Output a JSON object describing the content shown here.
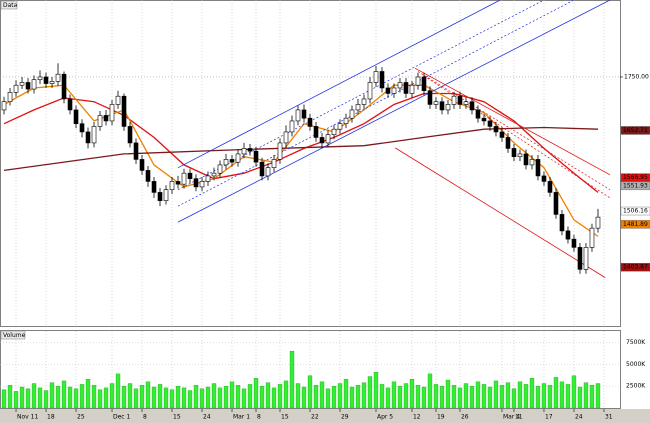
{
  "chart_data": {
    "type": "candlestick",
    "title": "Data",
    "xlim": [
      -0.67,
      102.67
    ],
    "ylim": [
      1297,
      1890
    ],
    "xticks": [
      {
        "value": 2,
        "label": "Nov 11"
      },
      {
        "value": 7,
        "label": "18"
      },
      {
        "value": 12,
        "label": "25"
      },
      {
        "value": 18,
        "label": "Dec 1"
      },
      {
        "value": 23,
        "label": "8"
      },
      {
        "value": 28,
        "label": "15"
      },
      {
        "value": 33,
        "label": "24"
      },
      {
        "value": 38,
        "label": "Mar 1"
      },
      {
        "value": 42,
        "label": "8"
      },
      {
        "value": 46,
        "label": "15"
      },
      {
        "value": 51,
        "label": "22"
      },
      {
        "value": 56,
        "label": "29"
      },
      {
        "value": 62,
        "label": "Apr 5"
      },
      {
        "value": 68,
        "label": "12"
      },
      {
        "value": 72,
        "label": "19"
      },
      {
        "value": 76,
        "label": "26"
      },
      {
        "value": 83,
        "label": "Mar 4"
      },
      {
        "value": 85,
        "label": "11"
      },
      {
        "value": 90,
        "label": "17"
      },
      {
        "value": 95,
        "label": "24"
      },
      {
        "value": 100,
        "label": "31"
      }
    ],
    "yticks": [
      {
        "value": 1750,
        "label": "1750.00"
      }
    ],
    "grid": true,
    "open": [
      1690,
      1705,
      1722,
      1735,
      1740,
      1728,
      1745,
      1750,
      1738,
      1742,
      1755,
      1710,
      1690,
      1665,
      1650,
      1630,
      1660,
      1680,
      1670,
      1700,
      1715,
      1660,
      1630,
      1600,
      1580,
      1560,
      1540,
      1525,
      1545,
      1560,
      1555,
      1575,
      1565,
      1550,
      1560,
      1570,
      1575,
      1590,
      1600,
      1595,
      1610,
      1620,
      1615,
      1595,
      1570,
      1585,
      1600,
      1630,
      1650,
      1670,
      1690,
      1675,
      1660,
      1640,
      1630,
      1645,
      1655,
      1665,
      1675,
      1690,
      1700,
      1710,
      1740,
      1760,
      1730,
      1720,
      1730,
      1740,
      1720,
      1735,
      1750,
      1725,
      1700,
      1705,
      1690,
      1700,
      1715,
      1700,
      1705,
      1690,
      1675,
      1670,
      1660,
      1650,
      1640,
      1620,
      1605,
      1610,
      1590,
      1600,
      1570,
      1560,
      1540,
      1500,
      1470,
      1455,
      1440,
      1400,
      1440,
      1475
    ],
    "high": [
      1714,
      1730,
      1744,
      1750,
      1748,
      1753,
      1762,
      1758,
      1750,
      1775,
      1760,
      1718,
      1698,
      1673,
      1658,
      1668,
      1688,
      1690,
      1708,
      1725,
      1720,
      1668,
      1638,
      1608,
      1588,
      1568,
      1548,
      1553,
      1568,
      1570,
      1583,
      1583,
      1573,
      1568,
      1578,
      1585,
      1598,
      1610,
      1608,
      1618,
      1630,
      1628,
      1623,
      1603,
      1593,
      1608,
      1638,
      1662,
      1680,
      1698,
      1700,
      1683,
      1668,
      1648,
      1653,
      1663,
      1673,
      1683,
      1698,
      1710,
      1718,
      1750,
      1770,
      1768,
      1738,
      1738,
      1748,
      1748,
      1743,
      1758,
      1758,
      1733,
      1713,
      1713,
      1708,
      1723,
      1723,
      1713,
      1713,
      1698,
      1683,
      1678,
      1668,
      1658,
      1648,
      1628,
      1618,
      1618,
      1608,
      1608,
      1578,
      1568,
      1548,
      1508,
      1478,
      1463,
      1448,
      1448,
      1483,
      1510
    ],
    "low": [
      1682,
      1698,
      1714,
      1728,
      1720,
      1720,
      1737,
      1730,
      1730,
      1734,
      1702,
      1682,
      1657,
      1640,
      1620,
      1622,
      1652,
      1662,
      1662,
      1692,
      1652,
      1622,
      1592,
      1572,
      1550,
      1530,
      1515,
      1518,
      1537,
      1547,
      1547,
      1557,
      1542,
      1542,
      1552,
      1562,
      1567,
      1582,
      1587,
      1587,
      1602,
      1607,
      1587,
      1562,
      1562,
      1577,
      1592,
      1622,
      1642,
      1662,
      1667,
      1652,
      1632,
      1620,
      1622,
      1637,
      1647,
      1657,
      1667,
      1682,
      1692,
      1702,
      1732,
      1722,
      1712,
      1712,
      1722,
      1712,
      1712,
      1727,
      1717,
      1692,
      1692,
      1682,
      1682,
      1692,
      1692,
      1692,
      1682,
      1667,
      1662,
      1652,
      1642,
      1632,
      1612,
      1597,
      1597,
      1582,
      1582,
      1562,
      1552,
      1532,
      1492,
      1462,
      1447,
      1432,
      1392,
      1392,
      1432,
      1467
    ],
    "close": [
      1705,
      1722,
      1735,
      1740,
      1728,
      1745,
      1750,
      1738,
      1742,
      1755,
      1710,
      1690,
      1665,
      1650,
      1630,
      1660,
      1680,
      1670,
      1700,
      1715,
      1660,
      1630,
      1600,
      1580,
      1560,
      1540,
      1525,
      1545,
      1560,
      1555,
      1575,
      1565,
      1550,
      1560,
      1570,
      1575,
      1590,
      1600,
      1595,
      1610,
      1620,
      1615,
      1595,
      1570,
      1585,
      1600,
      1630,
      1650,
      1670,
      1690,
      1675,
      1660,
      1640,
      1630,
      1645,
      1655,
      1665,
      1675,
      1690,
      1700,
      1710,
      1740,
      1760,
      1730,
      1720,
      1730,
      1740,
      1720,
      1735,
      1750,
      1725,
      1700,
      1705,
      1690,
      1700,
      1715,
      1700,
      1705,
      1690,
      1675,
      1670,
      1660,
      1650,
      1640,
      1620,
      1605,
      1610,
      1590,
      1600,
      1570,
      1560,
      1540,
      1500,
      1470,
      1455,
      1440,
      1400,
      1440,
      1475,
      1495
    ],
    "lines": [
      {
        "color": "#e01010",
        "x": [
          0,
          5,
          10,
          15,
          20,
          25,
          30,
          35,
          40,
          45,
          50,
          55,
          60,
          65,
          70,
          75,
          80,
          85,
          90,
          95,
          99
        ],
        "values": [
          1665,
          1690,
          1712,
          1705,
          1680,
          1640,
          1590,
          1565,
          1575,
          1595,
          1620,
          1640,
          1665,
          1700,
          1720,
          1720,
          1705,
          1670,
          1620,
          1575,
          1540
        ]
      },
      {
        "color": "#f08000",
        "x": [
          0,
          5,
          10,
          15,
          20,
          25,
          30,
          35,
          40,
          45,
          50,
          55,
          60,
          65,
          70,
          75,
          80,
          85,
          90,
          95,
          99
        ],
        "values": [
          1700,
          1730,
          1735,
          1670,
          1690,
          1590,
          1550,
          1565,
          1605,
          1595,
          1665,
          1650,
          1690,
          1735,
          1735,
          1705,
          1685,
          1630,
          1585,
          1490,
          1460
        ]
      },
      {
        "color": "#7b1a1a",
        "x": [
          0,
          20,
          40,
          60,
          70,
          80,
          90,
          99
        ],
        "values": [
          1580,
          1610,
          1618,
          1625,
          1640,
          1655,
          1658,
          1655
        ]
      }
    ],
    "trendlines": [
      {
        "color": "#2030e0",
        "dash": false,
        "x": [
          29,
          101
        ],
        "values": [
          1486,
          1890
        ]
      },
      {
        "color": "#2030e0",
        "dash": false,
        "x": [
          29,
          82.7
        ],
        "values": [
          1585,
          1890
        ]
      },
      {
        "color": "#2030e0",
        "dash": true,
        "x": [
          29,
          90
        ],
        "values": [
          1545,
          1890
        ]
      },
      {
        "color": "#2030e0",
        "dash": true,
        "x": [
          29,
          95
        ],
        "values": [
          1515,
          1890
        ]
      },
      {
        "color": "#e01010",
        "dash": false,
        "x": [
          68.5,
          101
        ],
        "values": [
          1766,
          1572
        ]
      },
      {
        "color": "#e01010",
        "dash": false,
        "x": [
          65.2,
          100.2
        ],
        "values": [
          1621,
          1385
        ]
      },
      {
        "color": "#e01010",
        "dash": true,
        "x": [
          69,
          101
        ],
        "values": [
          1760,
          1545
        ]
      },
      {
        "color": "#e01010",
        "dash": true,
        "x": [
          70,
          101
        ],
        "values": [
          1752,
          1530
        ]
      }
    ],
    "price_tags": [
      {
        "value": 1652.71,
        "label": "1652.71",
        "color": "#7b1a1a"
      },
      {
        "value": 1566.95,
        "label": "1566.95",
        "color": "#e01010"
      },
      {
        "value": 1551.93,
        "label": "1551.93",
        "color": "#b0b0b0"
      },
      {
        "value": 1506.16,
        "label": "1506.16",
        "color": "#ffffff"
      },
      {
        "value": 1481.89,
        "label": "1481.89",
        "color": "#f08000"
      },
      {
        "value": 1403.87,
        "label": "1403.87",
        "color": "#a01010"
      }
    ],
    "volume": {
      "name": "Volume",
      "color": "#33ee33",
      "ylim": [
        0,
        8800
      ],
      "yticks": [
        {
          "value": 7500,
          "label": "7500K"
        },
        {
          "value": 5000,
          "label": "5000K"
        },
        {
          "value": 2500,
          "label": "2500K"
        }
      ],
      "values": [
        2100,
        2600,
        1900,
        2400,
        2200,
        2800,
        2300,
        2000,
        2900,
        2500,
        3100,
        2400,
        2200,
        2700,
        3300,
        2600,
        2100,
        2300,
        2800,
        3900,
        2500,
        2800,
        2200,
        2600,
        3000,
        2400,
        2700,
        2300,
        2100,
        2500,
        2300,
        2000,
        2600,
        2200,
        2400,
        2800,
        2300,
        2500,
        3000,
        2600,
        2200,
        2700,
        3400,
        2500,
        2900,
        2300,
        2700,
        3100,
        6500,
        2800,
        2400,
        3700,
        2600,
        3000,
        2200,
        2500,
        2800,
        3300,
        2400,
        2600,
        2900,
        3600,
        4100,
        2700,
        2300,
        3000,
        2500,
        2800,
        3300,
        2600,
        2400,
        3900,
        2700,
        2500,
        3200,
        2600,
        2300,
        2800,
        2500,
        3000,
        2700,
        2400,
        3100,
        2600,
        2900,
        2200,
        3000,
        2700,
        3400,
        2500,
        2800,
        2600,
        3500,
        3000,
        2700,
        3700,
        2400,
        2900,
        2600,
        2800
      ]
    }
  }
}
